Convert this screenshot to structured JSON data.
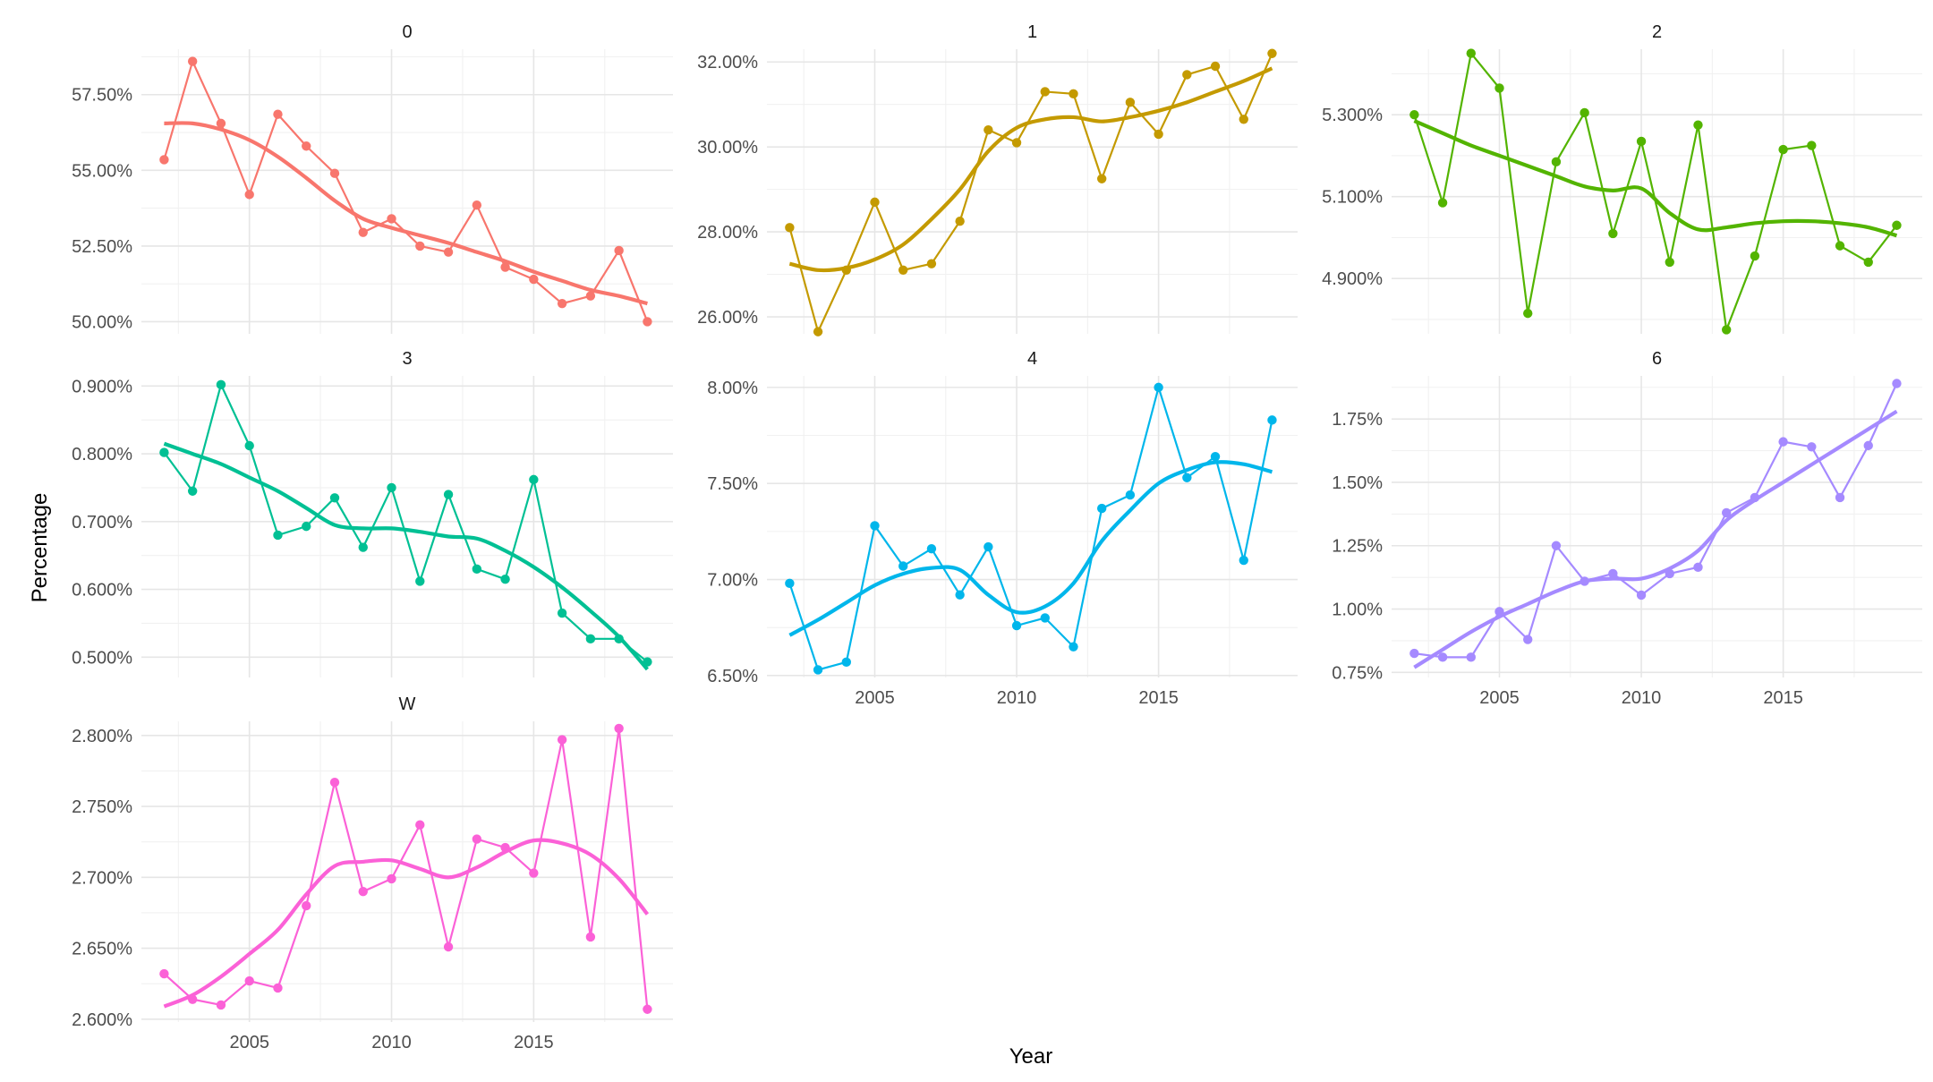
{
  "chart_data": {
    "type": "line",
    "layout": "facet_wrap",
    "xlabel": "Year",
    "ylabel": "Percentage",
    "grid": true,
    "legend": "none",
    "x": [
      2002,
      2003,
      2004,
      2005,
      2006,
      2007,
      2008,
      2009,
      2010,
      2011,
      2012,
      2013,
      2014,
      2015,
      2016,
      2017,
      2018,
      2019
    ],
    "x_ticks": [
      "2005",
      "2010",
      "2015"
    ],
    "xlim": [
      2001.2,
      2019.9
    ],
    "panels": [
      {
        "label": "0",
        "color": "#F8766D",
        "ylim": [
          49.6,
          59.0
        ],
        "y_ticks": [
          "50.00%",
          "52.50%",
          "55.00%",
          "57.50%"
        ],
        "y_tick_values": [
          50.0,
          52.5,
          55.0,
          57.5
        ],
        "values": [
          55.35,
          58.6,
          56.55,
          54.2,
          56.85,
          55.8,
          54.9,
          52.95,
          53.4,
          52.5,
          52.3,
          53.85,
          51.8,
          51.4,
          50.6,
          50.85,
          52.35,
          50.0
        ],
        "smooth": [
          56.55,
          56.55,
          56.35,
          56.0,
          55.45,
          54.75,
          54.0,
          53.4,
          53.1,
          52.85,
          52.6,
          52.3,
          52.0,
          51.65,
          51.35,
          51.05,
          50.85,
          50.6
        ]
      },
      {
        "label": "1",
        "color": "#C49A00",
        "ylim": [
          25.6,
          32.3
        ],
        "y_ticks": [
          "26.00%",
          "28.00%",
          "30.00%",
          "32.00%"
        ],
        "y_tick_values": [
          26,
          28,
          30,
          32
        ],
        "values": [
          28.1,
          25.65,
          27.1,
          28.7,
          27.1,
          27.25,
          28.25,
          30.4,
          30.1,
          31.3,
          31.25,
          29.25,
          31.05,
          30.3,
          31.7,
          31.9,
          30.65,
          32.2
        ],
        "smooth": [
          27.25,
          27.1,
          27.15,
          27.35,
          27.7,
          28.3,
          29.0,
          29.9,
          30.45,
          30.65,
          30.7,
          30.6,
          30.7,
          30.85,
          31.05,
          31.3,
          31.55,
          31.85
        ]
      },
      {
        "label": "2",
        "color": "#53B400",
        "ylim": [
          4.765,
          5.46
        ],
        "y_ticks": [
          "4.900%",
          "5.100%",
          "5.300%"
        ],
        "y_tick_values": [
          4.9,
          5.1,
          5.3
        ],
        "values": [
          5.3,
          5.085,
          5.45,
          5.365,
          4.815,
          5.185,
          5.305,
          5.01,
          5.235,
          4.94,
          5.275,
          4.775,
          4.955,
          5.215,
          5.225,
          4.98,
          4.94,
          5.03
        ],
        "smooth": [
          5.285,
          5.255,
          5.225,
          5.2,
          5.175,
          5.15,
          5.125,
          5.115,
          5.12,
          5.06,
          5.02,
          5.025,
          5.035,
          5.04,
          5.04,
          5.035,
          5.025,
          5.005
        ]
      },
      {
        "label": "3",
        "color": "#00C094",
        "ylim": [
          0.47,
          0.915
        ],
        "y_ticks": [
          "0.500%",
          "0.600%",
          "0.700%",
          "0.800%",
          "0.900%"
        ],
        "y_tick_values": [
          0.5,
          0.6,
          0.7,
          0.8,
          0.9
        ],
        "values": [
          0.802,
          0.745,
          0.902,
          0.812,
          0.68,
          0.693,
          0.735,
          0.662,
          0.75,
          0.612,
          0.74,
          0.63,
          0.615,
          0.762,
          0.565,
          0.527,
          0.527,
          0.493
        ],
        "smooth": [
          0.815,
          0.8,
          0.785,
          0.765,
          0.745,
          0.72,
          0.695,
          0.69,
          0.69,
          0.685,
          0.678,
          0.675,
          0.657,
          0.633,
          0.603,
          0.568,
          0.53,
          0.482
        ]
      },
      {
        "label": "4",
        "color": "#00B6EB",
        "ylim": [
          6.49,
          8.06
        ],
        "y_ticks": [
          "6.50%",
          "7.00%",
          "7.50%",
          "8.00%"
        ],
        "y_tick_values": [
          6.5,
          7.0,
          7.5,
          8.0
        ],
        "values": [
          6.98,
          6.53,
          6.57,
          7.28,
          7.07,
          7.16,
          6.92,
          7.17,
          6.76,
          6.8,
          6.65,
          7.37,
          7.44,
          8.0,
          7.53,
          7.64,
          7.1,
          7.83
        ],
        "smooth": [
          6.71,
          6.79,
          6.88,
          6.97,
          7.03,
          7.06,
          7.05,
          6.92,
          6.83,
          6.86,
          6.98,
          7.2,
          7.36,
          7.5,
          7.57,
          7.61,
          7.6,
          7.56
        ]
      },
      {
        "label": "6",
        "color": "#A58AFF",
        "ylim": [
          0.73,
          1.92
        ],
        "y_ticks": [
          "0.75%",
          "1.00%",
          "1.25%",
          "1.50%",
          "1.75%"
        ],
        "y_tick_values": [
          0.75,
          1.0,
          1.25,
          1.5,
          1.75
        ],
        "values": [
          0.825,
          0.81,
          0.81,
          0.99,
          0.88,
          1.25,
          1.11,
          1.14,
          1.055,
          1.14,
          1.165,
          1.38,
          1.44,
          1.66,
          1.64,
          1.44,
          1.645,
          1.89
        ],
        "smooth": [
          0.77,
          0.84,
          0.91,
          0.97,
          1.02,
          1.07,
          1.11,
          1.12,
          1.12,
          1.16,
          1.23,
          1.35,
          1.43,
          1.5,
          1.57,
          1.64,
          1.71,
          1.78
        ]
      },
      {
        "label": "W",
        "color": "#FB61D7",
        "ylim": [
          2.598,
          2.81
        ],
        "y_ticks": [
          "2.600%",
          "2.650%",
          "2.700%",
          "2.750%",
          "2.800%"
        ],
        "y_tick_values": [
          2.6,
          2.65,
          2.7,
          2.75,
          2.8
        ],
        "values": [
          2.632,
          2.614,
          2.61,
          2.627,
          2.622,
          2.68,
          2.767,
          2.69,
          2.699,
          2.737,
          2.651,
          2.727,
          2.721,
          2.703,
          2.797,
          2.658,
          2.805,
          2.607
        ],
        "smooth": [
          2.609,
          2.617,
          2.63,
          2.646,
          2.663,
          2.688,
          2.708,
          2.711,
          2.712,
          2.706,
          2.7,
          2.707,
          2.718,
          2.726,
          2.724,
          2.716,
          2.699,
          2.674
        ]
      }
    ]
  }
}
